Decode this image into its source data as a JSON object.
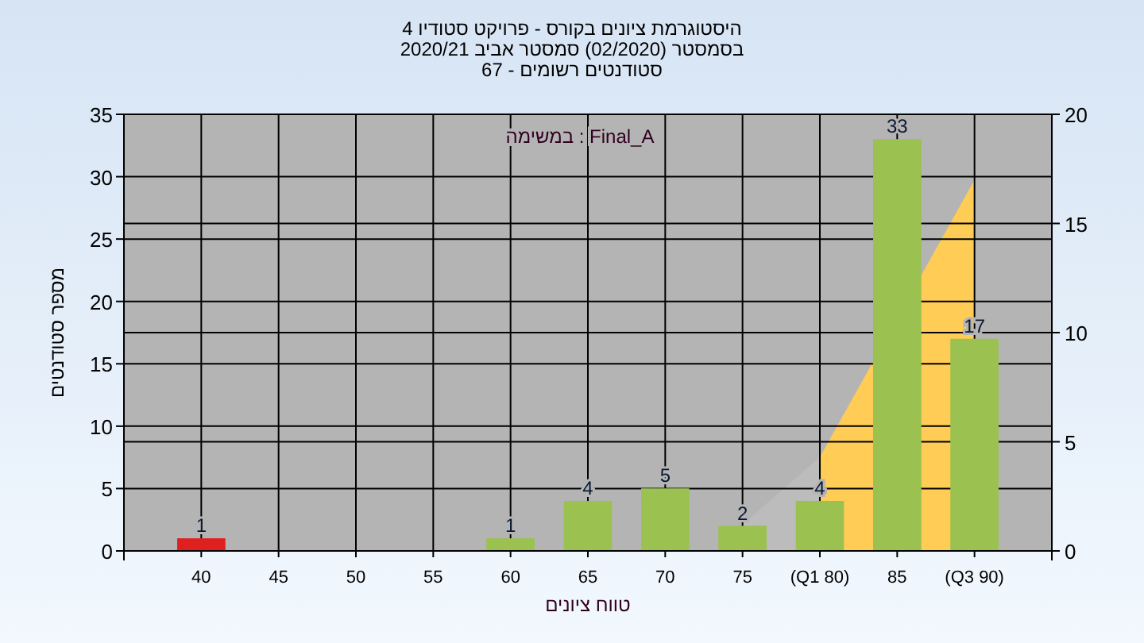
{
  "chart_data": {
    "type": "bar",
    "title": "היסטוגרמת ציונים בקורס - פרויקט סטודיו 4\nבסמסטר  (02/2020)  סמסטר אביב 2020/21\nסטודנטים רשומים - 67",
    "xlabel": "טווח ציונים",
    "ylabel": "מספר סטודנטים",
    "annotations": [
      "במשימה : Final_A"
    ],
    "categories": [
      "40",
      "45",
      "50",
      "55",
      "60",
      "65",
      "70",
      "75",
      "(Q1 80)",
      "85",
      "(Q3 90)"
    ],
    "series": [
      {
        "type": "area",
        "axis": "y2",
        "color": "#bcbcbc",
        "values": [
          null,
          null,
          null,
          null,
          null,
          null,
          null,
          1.2,
          4.3,
          null,
          null
        ]
      },
      {
        "type": "area",
        "axis": "y2",
        "color": "#ffcc55",
        "values": [
          null,
          null,
          null,
          null,
          null,
          null,
          null,
          null,
          4.3,
          null,
          17.0
        ]
      },
      {
        "colors": [
          "#e02020",
          "#9bc150",
          "#9bc150",
          "#9bc150",
          "#9bc150",
          "#9bc150",
          "#9bc150",
          "#9bc150",
          "#9bc150",
          "#9bc150",
          "#9bc150"
        ],
        "values": [
          1,
          0,
          0,
          0,
          1,
          4,
          5,
          2,
          4,
          33,
          17
        ],
        "value_labels": [
          "1",
          null,
          null,
          null,
          "1",
          "4",
          "5",
          "2",
          "4",
          "33",
          "17"
        ]
      }
    ],
    "ylim": [
      0,
      35
    ],
    "yticks": [
      0,
      5,
      10,
      15,
      20,
      25,
      30,
      35
    ],
    "y2lim": [
      0,
      20
    ],
    "y2ticks": [
      0,
      5,
      10,
      15,
      20
    ],
    "grid": true
  }
}
